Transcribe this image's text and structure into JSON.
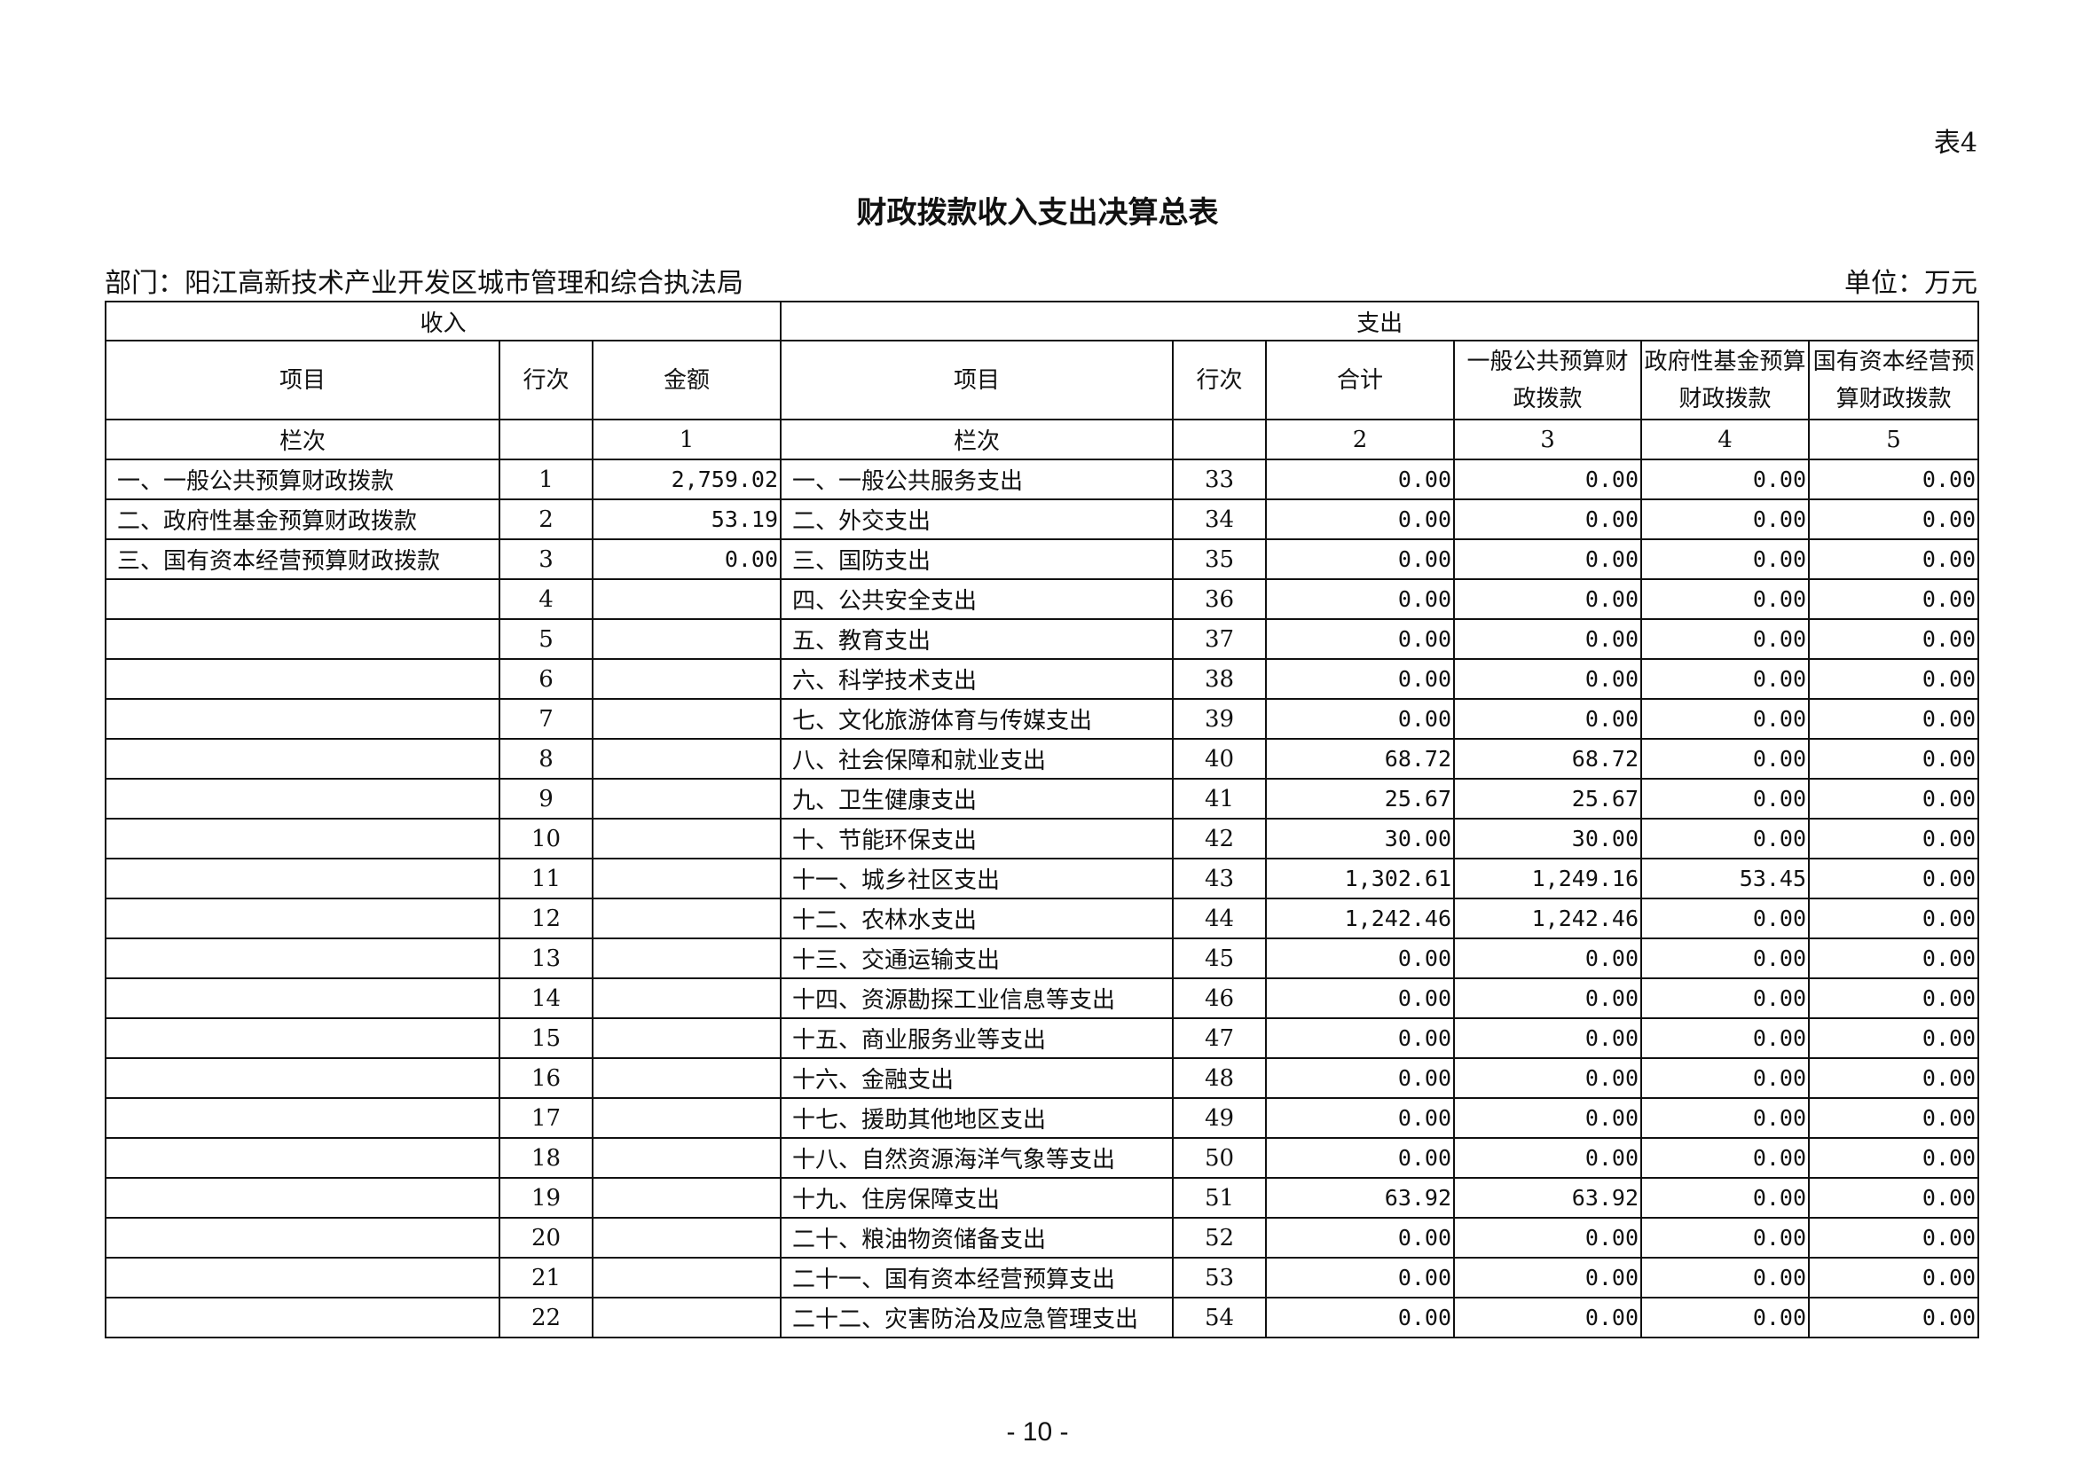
{
  "table_tag": "表4",
  "title": "财政拨款收入支出决算总表",
  "department": "部门：阳江高新技术产业开发区城市管理和综合执法局",
  "unit": "单位：万元",
  "income_header": "收入",
  "expense_header": "支出",
  "columns": {
    "item": "项目",
    "row_no": "行次",
    "amount": "金额",
    "exp_item": "项目",
    "exp_row_no": "行次",
    "total": "合计",
    "general": "一般公共预算财政拨款",
    "fund": "政府性基金预算财政拨款",
    "state": "国有资本经营预算财政拨款"
  },
  "column_index": {
    "label": "栏次",
    "amount": "1",
    "exp_label": "栏次",
    "total": "2",
    "general": "3",
    "fund": "4",
    "state": "5"
  },
  "rows": [
    {
      "in_item": "一、一般公共预算财政拨款",
      "in_no": "1",
      "in_amt": "2,759.02",
      "ex_item": "一、一般公共服务支出",
      "ex_no": "33",
      "total": "0.00",
      "general": "0.00",
      "fund": "0.00",
      "state": "0.00"
    },
    {
      "in_item": "二、政府性基金预算财政拨款",
      "in_no": "2",
      "in_amt": "53.19",
      "ex_item": "二、外交支出",
      "ex_no": "34",
      "total": "0.00",
      "general": "0.00",
      "fund": "0.00",
      "state": "0.00"
    },
    {
      "in_item": "三、国有资本经营预算财政拨款",
      "in_no": "3",
      "in_amt": "0.00",
      "ex_item": "三、国防支出",
      "ex_no": "35",
      "total": "0.00",
      "general": "0.00",
      "fund": "0.00",
      "state": "0.00"
    },
    {
      "in_item": "",
      "in_no": "4",
      "in_amt": "",
      "ex_item": "四、公共安全支出",
      "ex_no": "36",
      "total": "0.00",
      "general": "0.00",
      "fund": "0.00",
      "state": "0.00"
    },
    {
      "in_item": "",
      "in_no": "5",
      "in_amt": "",
      "ex_item": "五、教育支出",
      "ex_no": "37",
      "total": "0.00",
      "general": "0.00",
      "fund": "0.00",
      "state": "0.00"
    },
    {
      "in_item": "",
      "in_no": "6",
      "in_amt": "",
      "ex_item": "六、科学技术支出",
      "ex_no": "38",
      "total": "0.00",
      "general": "0.00",
      "fund": "0.00",
      "state": "0.00"
    },
    {
      "in_item": "",
      "in_no": "7",
      "in_amt": "",
      "ex_item": "七、文化旅游体育与传媒支出",
      "ex_no": "39",
      "total": "0.00",
      "general": "0.00",
      "fund": "0.00",
      "state": "0.00"
    },
    {
      "in_item": "",
      "in_no": "8",
      "in_amt": "",
      "ex_item": "八、社会保障和就业支出",
      "ex_no": "40",
      "total": "68.72",
      "general": "68.72",
      "fund": "0.00",
      "state": "0.00"
    },
    {
      "in_item": "",
      "in_no": "9",
      "in_amt": "",
      "ex_item": "九、卫生健康支出",
      "ex_no": "41",
      "total": "25.67",
      "general": "25.67",
      "fund": "0.00",
      "state": "0.00"
    },
    {
      "in_item": "",
      "in_no": "10",
      "in_amt": "",
      "ex_item": "十、节能环保支出",
      "ex_no": "42",
      "total": "30.00",
      "general": "30.00",
      "fund": "0.00",
      "state": "0.00"
    },
    {
      "in_item": "",
      "in_no": "11",
      "in_amt": "",
      "ex_item": "十一、城乡社区支出",
      "ex_no": "43",
      "total": "1,302.61",
      "general": "1,249.16",
      "fund": "53.45",
      "state": "0.00"
    },
    {
      "in_item": "",
      "in_no": "12",
      "in_amt": "",
      "ex_item": "十二、农林水支出",
      "ex_no": "44",
      "total": "1,242.46",
      "general": "1,242.46",
      "fund": "0.00",
      "state": "0.00"
    },
    {
      "in_item": "",
      "in_no": "13",
      "in_amt": "",
      "ex_item": "十三、交通运输支出",
      "ex_no": "45",
      "total": "0.00",
      "general": "0.00",
      "fund": "0.00",
      "state": "0.00"
    },
    {
      "in_item": "",
      "in_no": "14",
      "in_amt": "",
      "ex_item": "十四、资源勘探工业信息等支出",
      "ex_no": "46",
      "total": "0.00",
      "general": "0.00",
      "fund": "0.00",
      "state": "0.00"
    },
    {
      "in_item": "",
      "in_no": "15",
      "in_amt": "",
      "ex_item": "十五、商业服务业等支出",
      "ex_no": "47",
      "total": "0.00",
      "general": "0.00",
      "fund": "0.00",
      "state": "0.00"
    },
    {
      "in_item": "",
      "in_no": "16",
      "in_amt": "",
      "ex_item": "十六、金融支出",
      "ex_no": "48",
      "total": "0.00",
      "general": "0.00",
      "fund": "0.00",
      "state": "0.00"
    },
    {
      "in_item": "",
      "in_no": "17",
      "in_amt": "",
      "ex_item": "十七、援助其他地区支出",
      "ex_no": "49",
      "total": "0.00",
      "general": "0.00",
      "fund": "0.00",
      "state": "0.00"
    },
    {
      "in_item": "",
      "in_no": "18",
      "in_amt": "",
      "ex_item": "十八、自然资源海洋气象等支出",
      "ex_no": "50",
      "total": "0.00",
      "general": "0.00",
      "fund": "0.00",
      "state": "0.00"
    },
    {
      "in_item": "",
      "in_no": "19",
      "in_amt": "",
      "ex_item": "十九、住房保障支出",
      "ex_no": "51",
      "total": "63.92",
      "general": "63.92",
      "fund": "0.00",
      "state": "0.00"
    },
    {
      "in_item": "",
      "in_no": "20",
      "in_amt": "",
      "ex_item": "二十、粮油物资储备支出",
      "ex_no": "52",
      "total": "0.00",
      "general": "0.00",
      "fund": "0.00",
      "state": "0.00"
    },
    {
      "in_item": "",
      "in_no": "21",
      "in_amt": "",
      "ex_item": "二十一、国有资本经营预算支出",
      "ex_no": "53",
      "total": "0.00",
      "general": "0.00",
      "fund": "0.00",
      "state": "0.00"
    },
    {
      "in_item": "",
      "in_no": "22",
      "in_amt": "",
      "ex_item": "二十二、灾害防治及应急管理支出",
      "ex_no": "54",
      "total": "0.00",
      "general": "0.00",
      "fund": "0.00",
      "state": "0.00"
    }
  ],
  "page_number": "- 10 -"
}
